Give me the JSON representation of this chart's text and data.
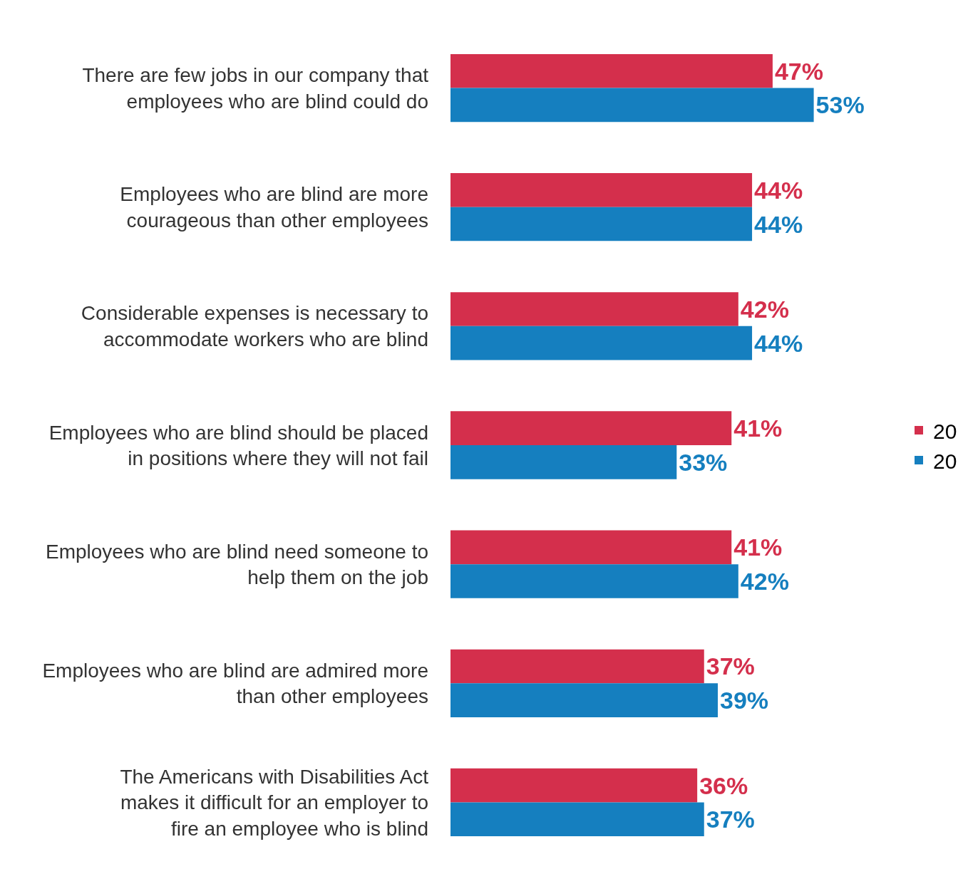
{
  "chart_data": {
    "type": "bar",
    "orientation": "horizontal",
    "categories": [
      "There are few jobs in our company that employees who are blind could do",
      "Employees who are blind are more courageous than other employees",
      "Considerable expenses is necessary to accommodate workers who are blind",
      "Employees who are blind should be placed in positions where they will not fail",
      "Employees who are blind need someone to help them on the job",
      "Employees who are blind are admired more than other employees",
      "The Americans with Disabilities Act makes it difficult for an employer to fire an employee who is blind"
    ],
    "series": [
      {
        "name": "20",
        "color": "#d42f4c",
        "values": [
          47,
          44,
          42,
          41,
          41,
          37,
          36
        ],
        "value_labels": [
          "47%",
          "44%",
          "42%",
          "41%",
          "41%",
          "37%",
          "36%"
        ]
      },
      {
        "name": "20",
        "color": "#157fbf",
        "values": [
          53,
          44,
          44,
          33,
          42,
          39,
          37
        ],
        "value_labels": [
          "53%",
          "44%",
          "44%",
          "33%",
          "42%",
          "39%",
          "37%"
        ]
      }
    ],
    "legend": "right"
  }
}
